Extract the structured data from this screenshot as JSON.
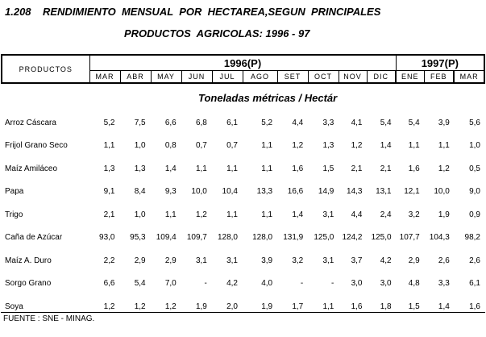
{
  "title": {
    "line1": "1.208    RENDIMIENTO  MENSUAL  POR  HECTAREA,SEGUN  PRINCIPALES",
    "line2": "PRODUCTOS  AGRICOLAS: 1996 - 97"
  },
  "header": {
    "products_label": "PRODUCTOS",
    "year1": "1996(P)",
    "year2": "1997(P)",
    "months": [
      "MAR",
      "ABR",
      "MAY",
      "JUN",
      "JUL",
      "AGO",
      "SET",
      "OCT",
      "NOV",
      "DIC",
      "ENE",
      "FEB",
      "MAR"
    ]
  },
  "unit": "Toneladas métricas / Hectár",
  "rows": [
    {
      "name": "Arroz Cáscara",
      "values": [
        "5,2",
        "7,5",
        "6,6",
        "6,8",
        "6,1",
        "5,2",
        "4,4",
        "3,3",
        "4,1",
        "5,4",
        "5,4",
        "3,9",
        "5,6"
      ]
    },
    {
      "name": "Frijol Grano Seco",
      "values": [
        "1,1",
        "1,0",
        "0,8",
        "0,7",
        "0,7",
        "1,1",
        "1,2",
        "1,3",
        "1,2",
        "1,4",
        "1,1",
        "1,1",
        "1,0"
      ]
    },
    {
      "name": "Maíz Amiláceo",
      "values": [
        "1,3",
        "1,3",
        "1,4",
        "1,1",
        "1,1",
        "1,1",
        "1,6",
        "1,5",
        "2,1",
        "2,1",
        "1,6",
        "1,2",
        "0,5"
      ]
    },
    {
      "name": "Papa",
      "values": [
        "9,1",
        "8,4",
        "9,3",
        "10,0",
        "10,4",
        "13,3",
        "16,6",
        "14,9",
        "14,3",
        "13,1",
        "12,1",
        "10,0",
        "9,0"
      ]
    },
    {
      "name": "Trigo",
      "values": [
        "2,1",
        "1,0",
        "1,1",
        "1,2",
        "1,1",
        "1,1",
        "1,4",
        "3,1",
        "4,4",
        "2,4",
        "3,2",
        "1,9",
        "0,9"
      ]
    },
    {
      "name": "Caña de Azúcar",
      "values": [
        "93,0",
        "95,3",
        "109,4",
        "109,7",
        "128,0",
        "128,0",
        "131,9",
        "125,0",
        "124,2",
        "125,0",
        "107,7",
        "104,3",
        "98,2"
      ]
    },
    {
      "name": "Maíz A. Duro",
      "values": [
        "2,2",
        "2,9",
        "2,9",
        "3,1",
        "3,1",
        "3,9",
        "3,2",
        "3,1",
        "3,7",
        "4,2",
        "2,9",
        "2,6",
        "2,6"
      ]
    },
    {
      "name": "Sorgo Grano",
      "values": [
        "6,6",
        "5,4",
        "7,0",
        "-",
        "4,2",
        "4,0",
        "-",
        "-",
        "3,0",
        "3,0",
        "4,8",
        "3,3",
        "6,1"
      ]
    },
    {
      "name": "Soya",
      "values": [
        "1,2",
        "1,2",
        "1,2",
        "1,9",
        "2,0",
        "1,9",
        "1,7",
        "1,1",
        "1,6",
        "1,8",
        "1,5",
        "1,4",
        "1,6"
      ]
    }
  ],
  "source": "FUENTE : SNE - MINAG."
}
